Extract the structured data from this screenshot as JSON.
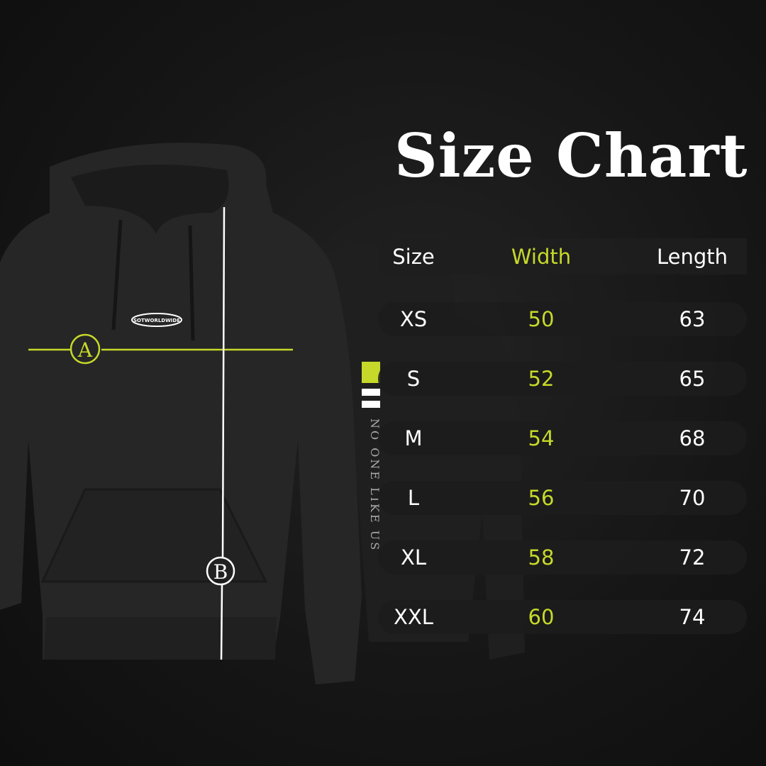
{
  "title": "Size Chart",
  "accent_color": "#c6d92a",
  "front_logo": "SOTWORLDWIDE",
  "sleeve_text": "NO ONE LIKE US",
  "markers": {
    "width": "A",
    "length": "B"
  },
  "table": {
    "headers": [
      "Size",
      "Width",
      "Length"
    ],
    "rows": [
      {
        "size": "XS",
        "width": "50",
        "length": "63"
      },
      {
        "size": "S",
        "width": "52",
        "length": "65"
      },
      {
        "size": "M",
        "width": "54",
        "length": "68"
      },
      {
        "size": "L",
        "width": "56",
        "length": "70"
      },
      {
        "size": "XL",
        "width": "58",
        "length": "72"
      },
      {
        "size": "XXL",
        "width": "60",
        "length": "74"
      }
    ]
  }
}
